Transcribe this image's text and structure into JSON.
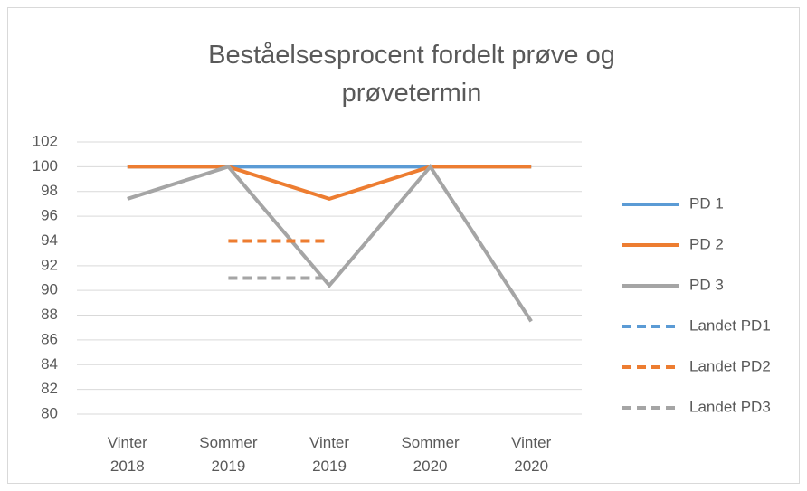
{
  "chart_data": {
    "type": "line",
    "title": "Beståelsesprocent fordelt prøve og prøvetermin",
    "categories": [
      "Vinter 2018",
      "Sommer 2019",
      "Vinter 2019",
      "Sommer 2020",
      "Vinter 2020"
    ],
    "series": [
      {
        "name": "PD 1",
        "color": "#5b9bd5",
        "dash": false,
        "values": [
          100,
          100,
          100,
          100,
          100
        ]
      },
      {
        "name": "PD 2",
        "color": "#ed7d31",
        "dash": false,
        "values": [
          100,
          100,
          97.4,
          100,
          100
        ]
      },
      {
        "name": "PD 3",
        "color": "#a5a5a5",
        "dash": false,
        "values": [
          97.4,
          100,
          90.4,
          100,
          87.5
        ]
      },
      {
        "name": "Landet PD1",
        "color": "#5b9bd5",
        "dash": true,
        "values": [
          null,
          null,
          null,
          null,
          null
        ]
      },
      {
        "name": "Landet PD2",
        "color": "#ed7d31",
        "dash": true,
        "values": [
          null,
          94,
          94,
          null,
          null
        ]
      },
      {
        "name": "Landet PD3",
        "color": "#a5a5a5",
        "dash": true,
        "values": [
          null,
          91,
          91,
          null,
          null
        ]
      }
    ],
    "ylim": [
      80,
      102
    ],
    "yticks": [
      80,
      82,
      84,
      86,
      88,
      90,
      92,
      94,
      96,
      98,
      100,
      102
    ],
    "grid": true,
    "legend": "right"
  }
}
